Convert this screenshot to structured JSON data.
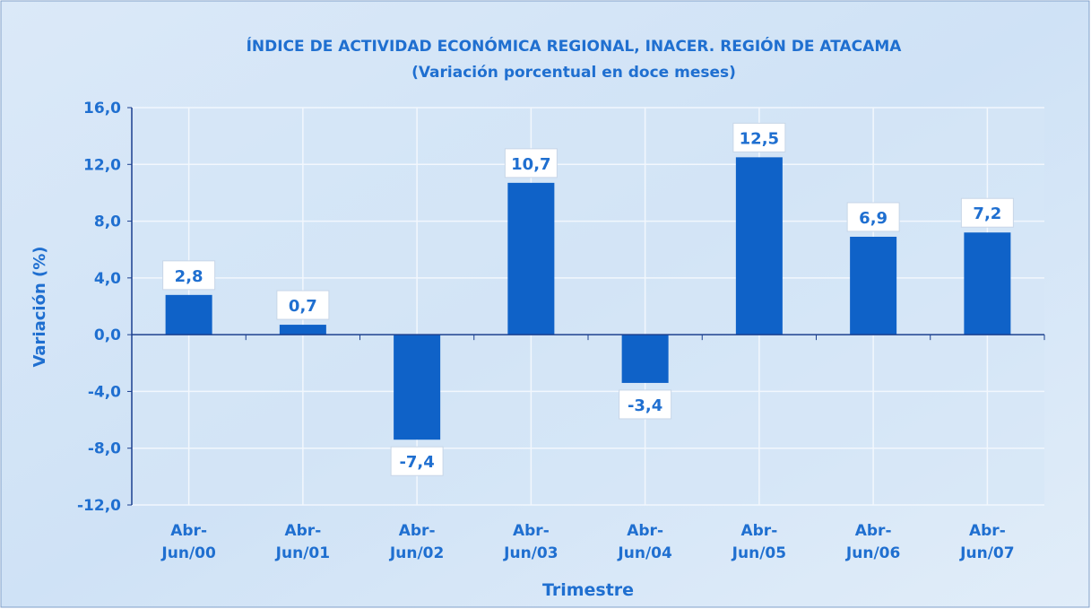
{
  "chart_data": {
    "type": "bar",
    "title": "ÍNDICE DE ACTIVIDAD ECONÓMICA REGIONAL, INACER. REGIÓN DE ATACAMA",
    "subtitle": "(Variación porcentual en doce meses)",
    "y_label": "Variación (%)",
    "x_label": "Trimestre",
    "categories": [
      "Abr-\nJun/00",
      "Abr-\nJun/01",
      "Abr-\nJun/02",
      "Abr-\nJun/03",
      "Abr-\nJun/04",
      "Abr-\nJun/05",
      "Abr-\nJun/06",
      "Abr-\nJun/07"
    ],
    "values": [
      2.8,
      0.7,
      -7.4,
      10.7,
      -3.4,
      12.5,
      6.9,
      7.2
    ],
    "value_labels": [
      "2,8",
      "0,7",
      "-7,4",
      "10,7",
      "-3,4",
      "12,5",
      "6,9",
      "7,2"
    ],
    "color": "#0f62c8",
    "ylim": [
      -12,
      16
    ],
    "yticks": [
      {
        "value": -12,
        "label": "-12,0"
      },
      {
        "value": -8,
        "label": "-8,0"
      },
      {
        "value": -4,
        "label": "-4,0"
      },
      {
        "value": 0,
        "label": "0,0"
      },
      {
        "value": 4,
        "label": "4,0"
      },
      {
        "value": 8,
        "label": "8,0"
      },
      {
        "value": 12,
        "label": "12,0"
      },
      {
        "value": 16,
        "label": "16,0"
      }
    ],
    "grid": true
  }
}
